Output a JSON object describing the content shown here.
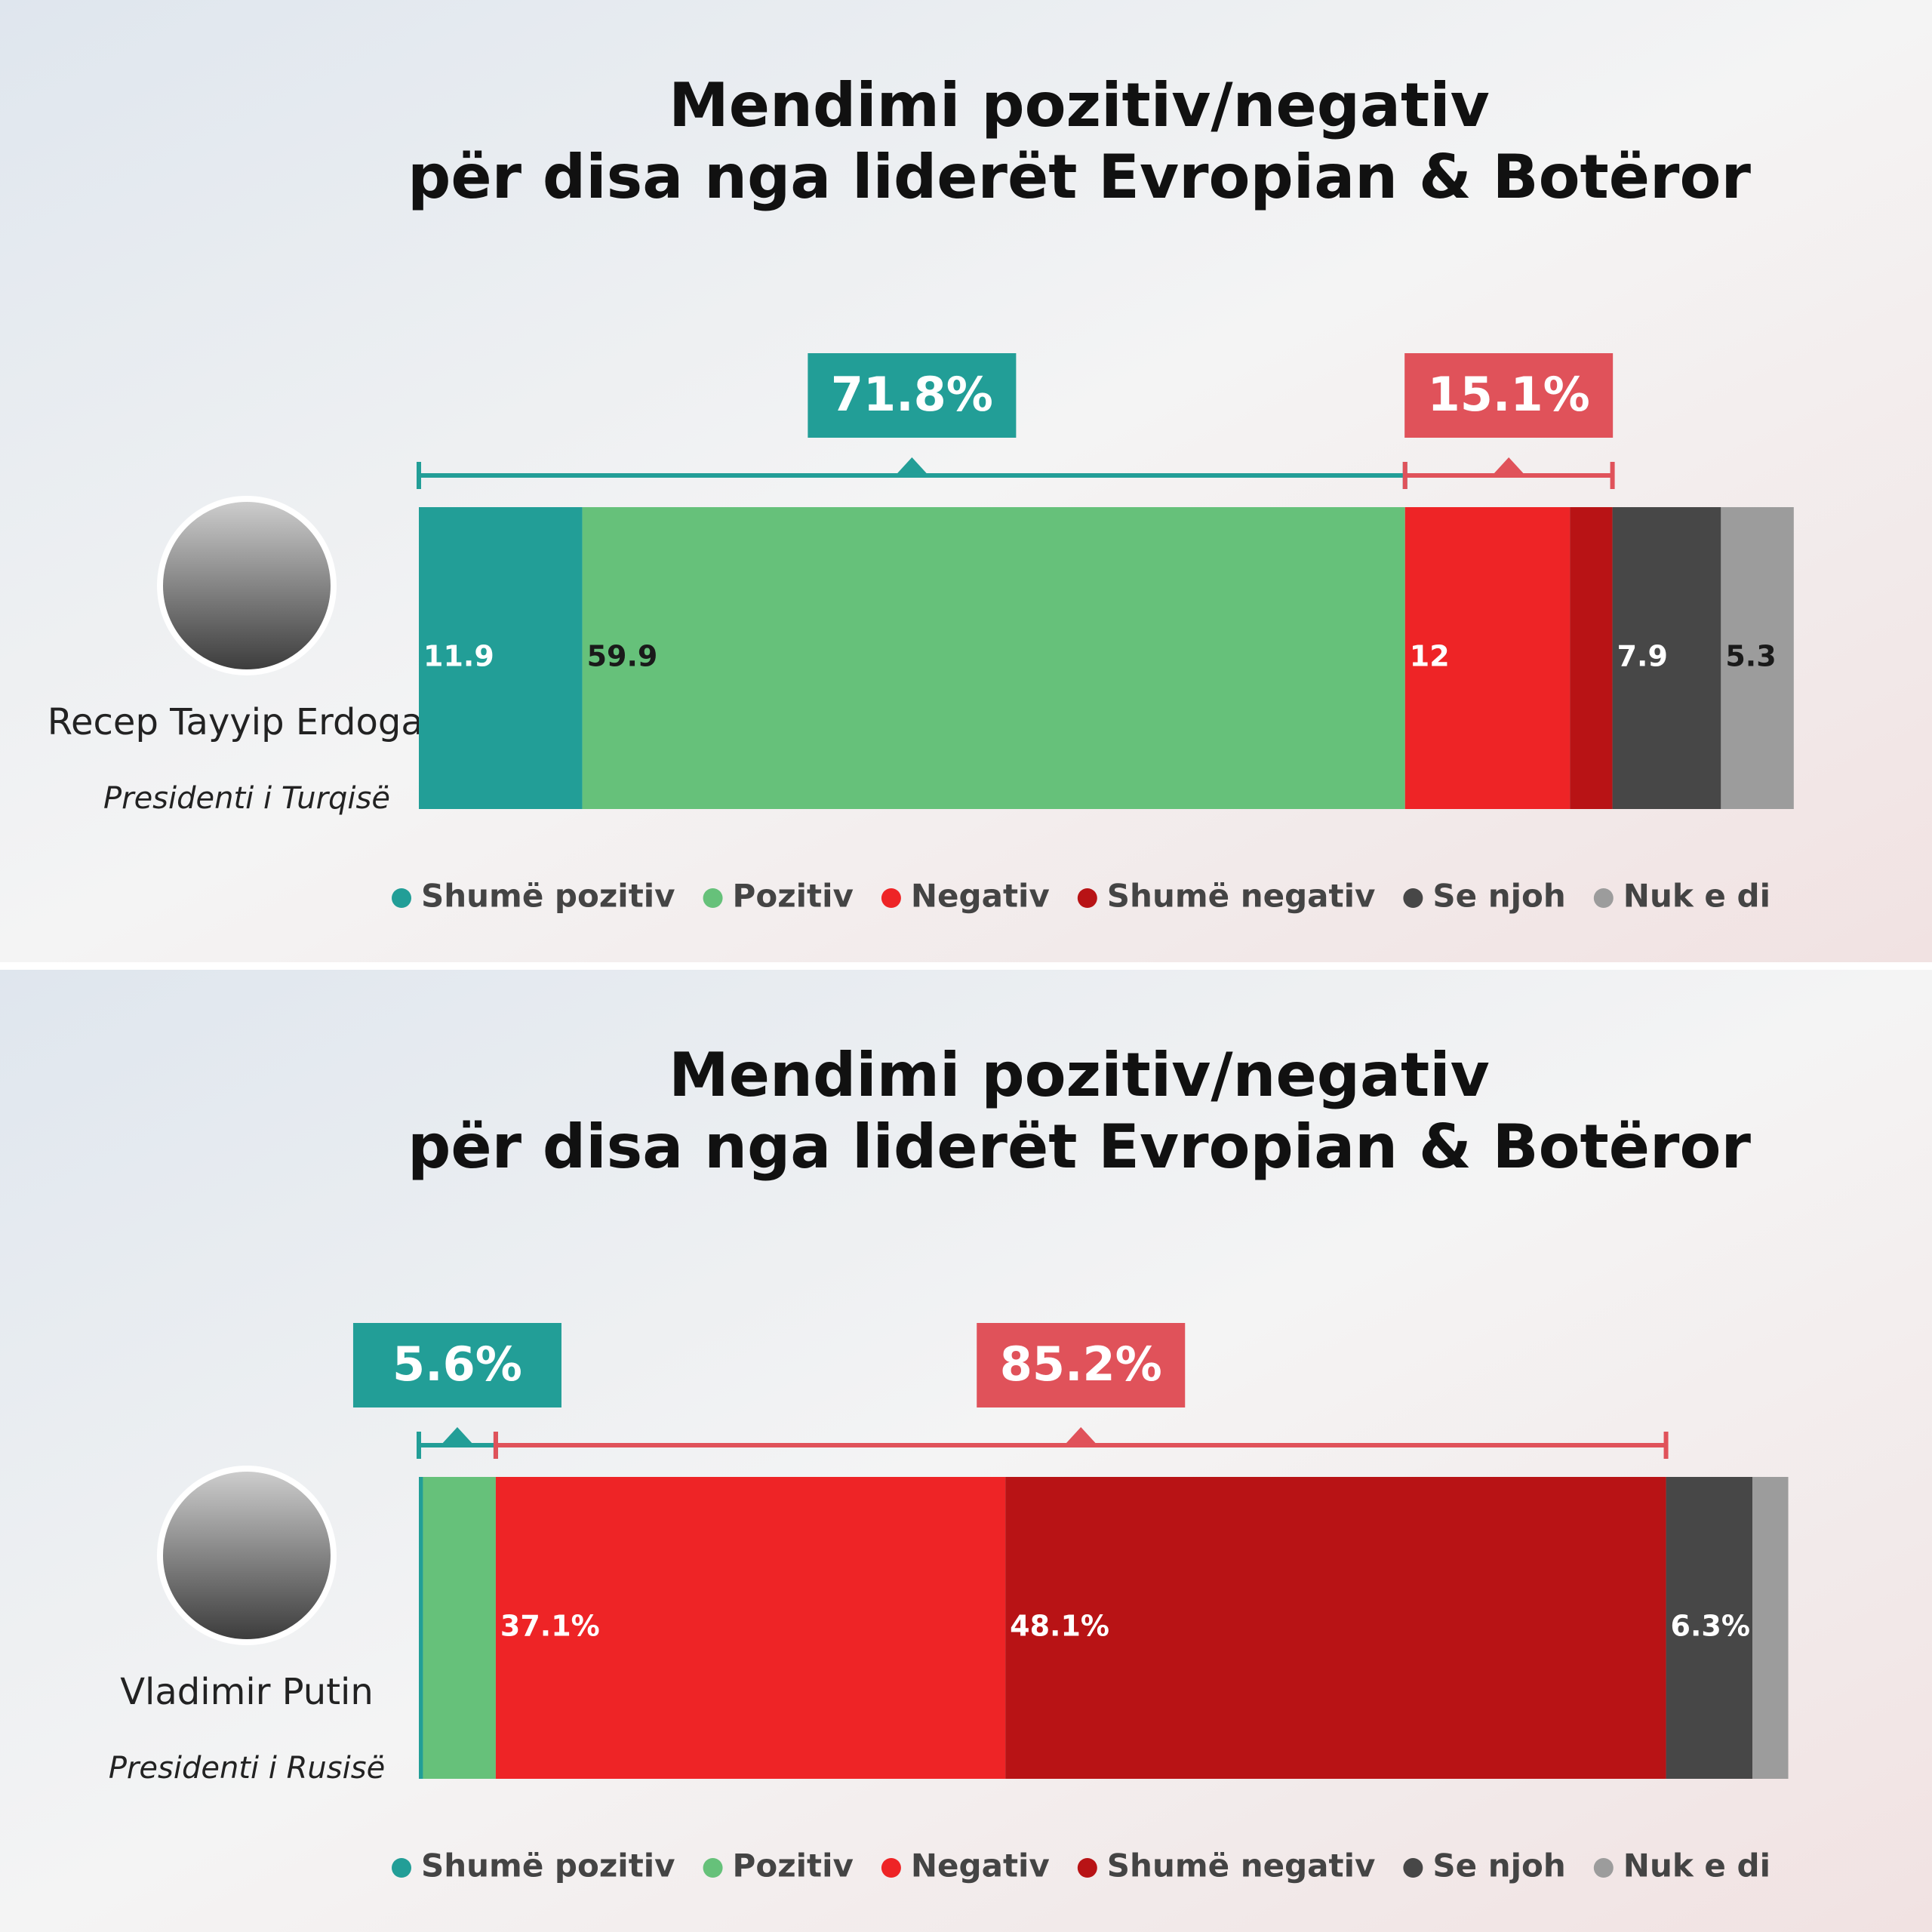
{
  "chart_data": [
    {
      "type": "stacked-bar",
      "title": [
        "Mendimi pozitiv/negativ",
        "për disa nga liderët Evropian & Botëror"
      ],
      "person": "Recep Tayyip Erdogan",
      "role": "Presidenti i Turqisë",
      "xlim": [
        0,
        100
      ],
      "series": [
        {
          "name": "Shumë pozitiv",
          "color": "#229e97",
          "values": [
            11.9
          ]
        },
        {
          "name": "Pozitiv",
          "color": "#66c17a",
          "values": [
            59.9
          ]
        },
        {
          "name": "Negativ",
          "color": "#ee2426",
          "values": [
            12
          ]
        },
        {
          "name": "Shumë negativ",
          "color": "#b81315",
          "values": [
            3.1
          ],
          "value_labels": [
            null
          ]
        },
        {
          "name": "Se njoh",
          "color": "#474747",
          "values": [
            7.9
          ]
        },
        {
          "name": "Nuk e di",
          "color": "#9c9c9c",
          "values": [
            5.3
          ]
        }
      ],
      "brackets": [
        {
          "value": 71.8,
          "label": "71.8%",
          "color": "#229e97"
        },
        {
          "value": 15.1,
          "label": "15.1%",
          "color": "#e0525a"
        }
      ]
    },
    {
      "type": "stacked-bar",
      "title": [
        "Mendimi pozitiv/negativ",
        "për disa nga liderët Evropian & Botëror"
      ],
      "person": "Vladimir Putin",
      "role": "Presidenti i Rusisë",
      "xlim": [
        0,
        100
      ],
      "series": [
        {
          "name": "Shumë pozitiv",
          "color": "#229e97",
          "values": [
            0.3
          ],
          "value_labels": [
            null
          ]
        },
        {
          "name": "Pozitiv",
          "color": "#66c17a",
          "values": [
            5.3
          ],
          "value_labels": [
            null
          ]
        },
        {
          "name": "Negativ",
          "color": "#ee2426",
          "values": [
            37.1
          ],
          "value_labels": [
            "37.1%"
          ]
        },
        {
          "name": "Shumë negativ",
          "color": "#b81315",
          "values": [
            48.1
          ],
          "value_labels": [
            "48.1%"
          ]
        },
        {
          "name": "Se njoh",
          "color": "#474747",
          "values": [
            6.3
          ],
          "value_labels": [
            "6.3%"
          ]
        },
        {
          "name": "Nuk e di",
          "color": "#9c9c9c",
          "values": [
            2.6
          ],
          "value_labels": [
            null
          ]
        }
      ],
      "brackets": [
        {
          "value": 5.6,
          "label": "5.6%",
          "color": "#229e97"
        },
        {
          "value": 85.2,
          "label": "85.2%",
          "color": "#e0525a"
        }
      ]
    }
  ]
}
